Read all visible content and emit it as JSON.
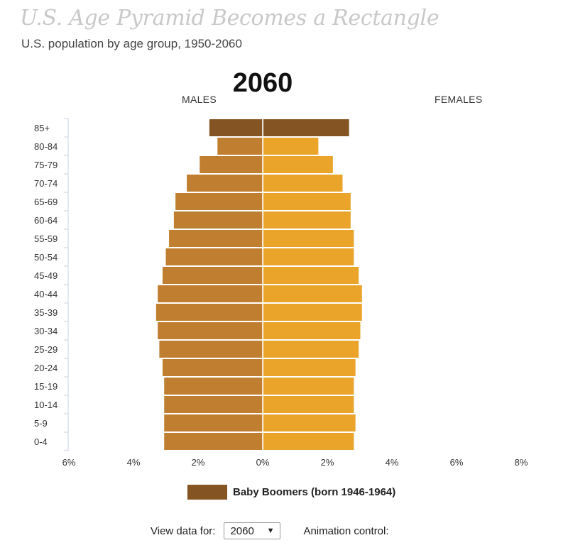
{
  "header": {
    "title": "U.S. Age Pyramid Becomes a Rectangle",
    "subtitle": "U.S. population by age group, 1950-2060",
    "year": "2060",
    "males_label": "MALES",
    "females_label": "FEMALES"
  },
  "legend": {
    "label": "Baby Boomers (born 1946-1964)",
    "color": "#845423"
  },
  "controls": {
    "view_label": "View data for:",
    "selected_year": "2060",
    "select_caret_icon": "caret-down-icon",
    "animation_label": "Animation control:"
  },
  "chart_data": {
    "type": "bar",
    "orientation": "horizontal-butterfly",
    "categories": [
      "85+",
      "80-84",
      "75-79",
      "70-74",
      "65-69",
      "60-64",
      "55-59",
      "50-54",
      "45-49",
      "40-44",
      "35-39",
      "30-34",
      "25-29",
      "20-24",
      "15-19",
      "10-14",
      "5-9",
      "0-4"
    ],
    "series": [
      {
        "name": "MALES",
        "values": [
          1.65,
          1.4,
          1.95,
          2.35,
          2.7,
          2.75,
          2.9,
          3.0,
          3.1,
          3.25,
          3.3,
          3.25,
          3.2,
          3.1,
          3.05,
          3.05,
          3.05,
          3.05
        ]
      },
      {
        "name": "FEMALES",
        "values": [
          2.65,
          1.7,
          2.15,
          2.45,
          2.7,
          2.7,
          2.8,
          2.8,
          2.95,
          3.05,
          3.05,
          3.0,
          2.95,
          2.85,
          2.8,
          2.8,
          2.85,
          2.8
        ]
      }
    ],
    "boomer_categories": [
      "85+"
    ],
    "x_ticks": [
      "6%",
      "4%",
      "2%",
      "0%",
      "2%",
      "4%",
      "6%",
      "8%"
    ],
    "xlim": [
      -6,
      8
    ],
    "xlabel": "",
    "ylabel": "",
    "grid": false,
    "colors": {
      "male": "#c07f30",
      "female": "#eaa42a",
      "boomer": "#845423"
    }
  }
}
